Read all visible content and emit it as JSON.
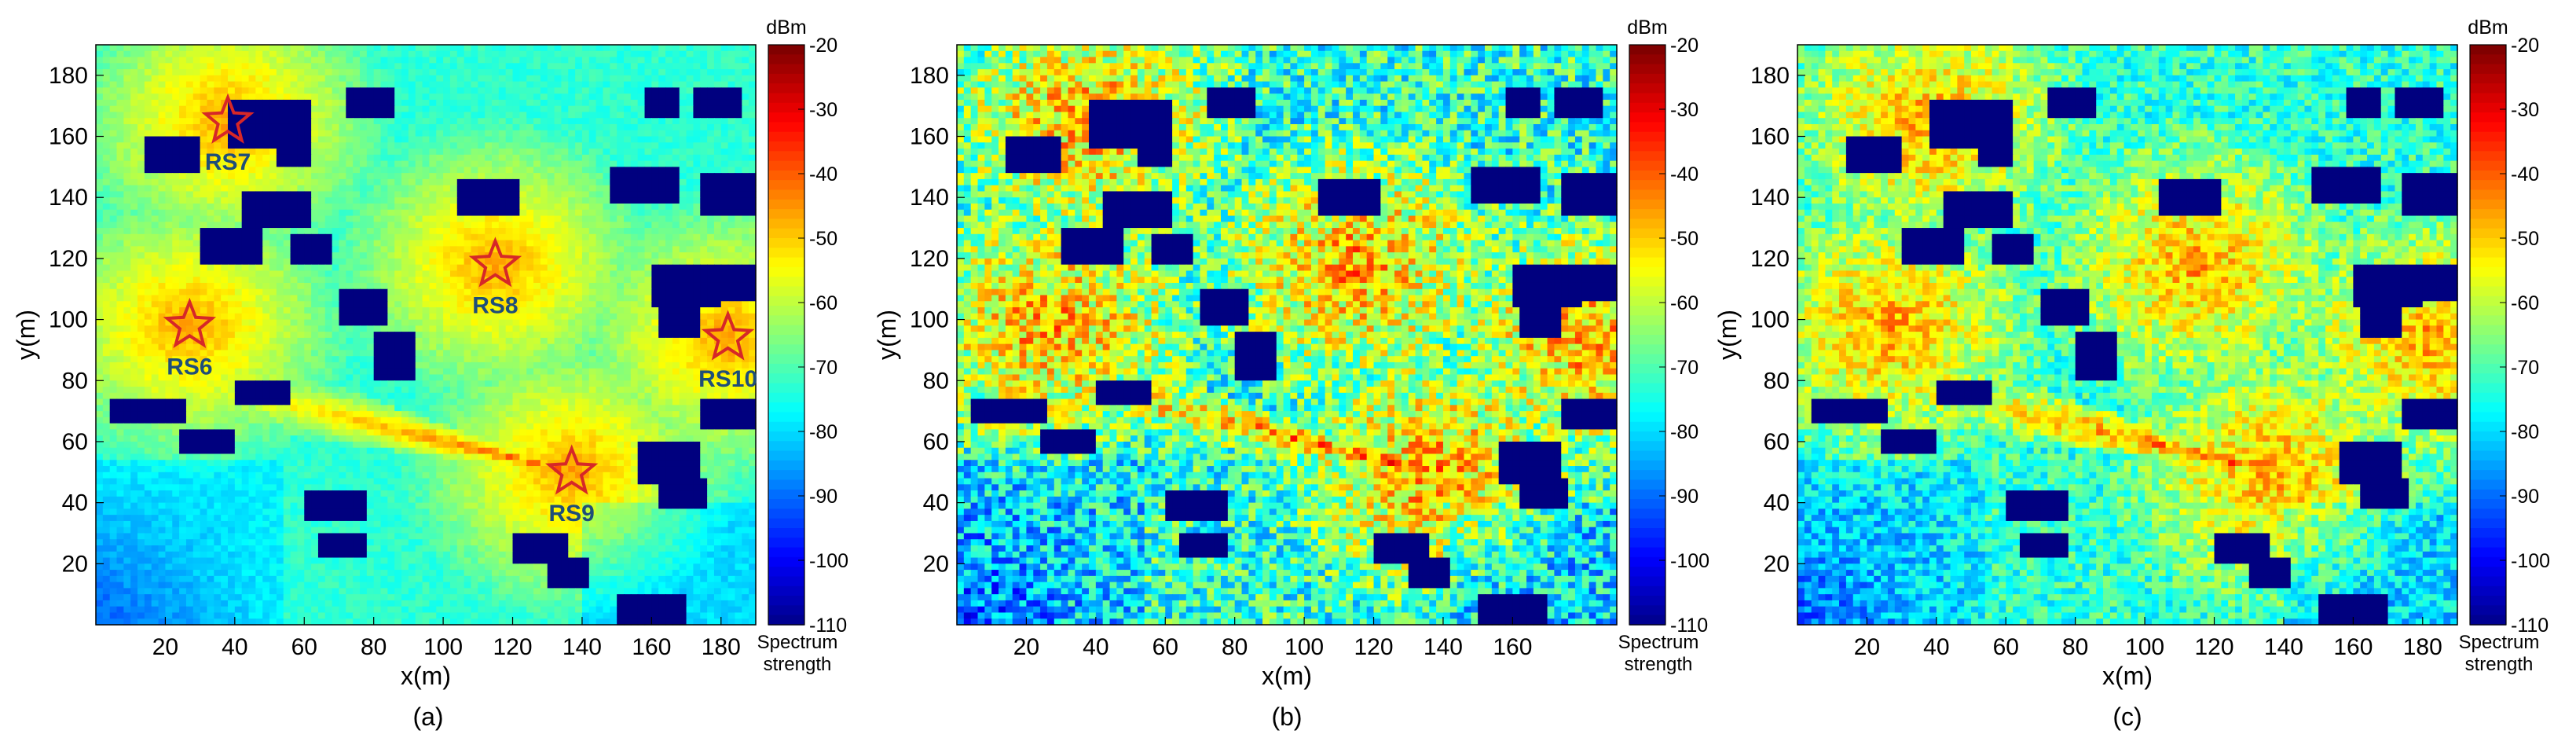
{
  "colors": {
    "station_star_stroke": "#d62728",
    "station_label": "#1f4e79",
    "building": "#00007f"
  },
  "colorbar": {
    "unit": "dBm",
    "title_line1": "Spectrum",
    "title_line2": "strength",
    "range": [
      -110,
      -20
    ],
    "ticks": [
      "-20",
      "-30",
      "-40",
      "-50",
      "-60",
      "-70",
      "-80",
      "-90",
      "-100",
      "-110"
    ],
    "colormap": "jet"
  },
  "chart_data": [
    {
      "type": "heatmap",
      "caption": "(a)",
      "xlabel": "x(m)",
      "ylabel": "y(m)",
      "xlim": [
        0,
        190
      ],
      "ylim": [
        0,
        190
      ],
      "x_ticks": [
        "20",
        "40",
        "60",
        "80",
        "100",
        "120",
        "140",
        "160",
        "180"
      ],
      "y_ticks": [
        "20",
        "40",
        "60",
        "80",
        "100",
        "120",
        "140",
        "160",
        "180"
      ],
      "noise": 0.03,
      "stations": [
        {
          "name": "RS7",
          "x": 38,
          "y": 165
        },
        {
          "name": "RS8",
          "x": 115,
          "y": 118
        },
        {
          "name": "RS6",
          "x": 27,
          "y": 98
        },
        {
          "name": "RS10",
          "x": 182,
          "y": 94
        },
        {
          "name": "RS9",
          "x": 137,
          "y": 50
        }
      ]
    },
    {
      "type": "heatmap",
      "caption": "(b)",
      "xlabel": "x(m)",
      "ylabel": "y(m)",
      "xlim": [
        0,
        190
      ],
      "ylim": [
        0,
        190
      ],
      "x_ticks": [
        "20",
        "40",
        "60",
        "80",
        "100",
        "120",
        "140",
        "160"
      ],
      "y_ticks": [
        "20",
        "40",
        "60",
        "80",
        "100",
        "120",
        "140",
        "160",
        "180"
      ],
      "noise": 0.16,
      "stations": []
    },
    {
      "type": "heatmap",
      "caption": "(c)",
      "xlabel": "x(m)",
      "ylabel": "y(m)",
      "xlim": [
        0,
        190
      ],
      "ylim": [
        0,
        190
      ],
      "x_ticks": [
        "20",
        "40",
        "60",
        "80",
        "100",
        "120",
        "140",
        "160",
        "180"
      ],
      "y_ticks": [
        "20",
        "40",
        "60",
        "80",
        "100",
        "120",
        "140",
        "160",
        "180"
      ],
      "noise": 0.1,
      "stations": []
    }
  ]
}
